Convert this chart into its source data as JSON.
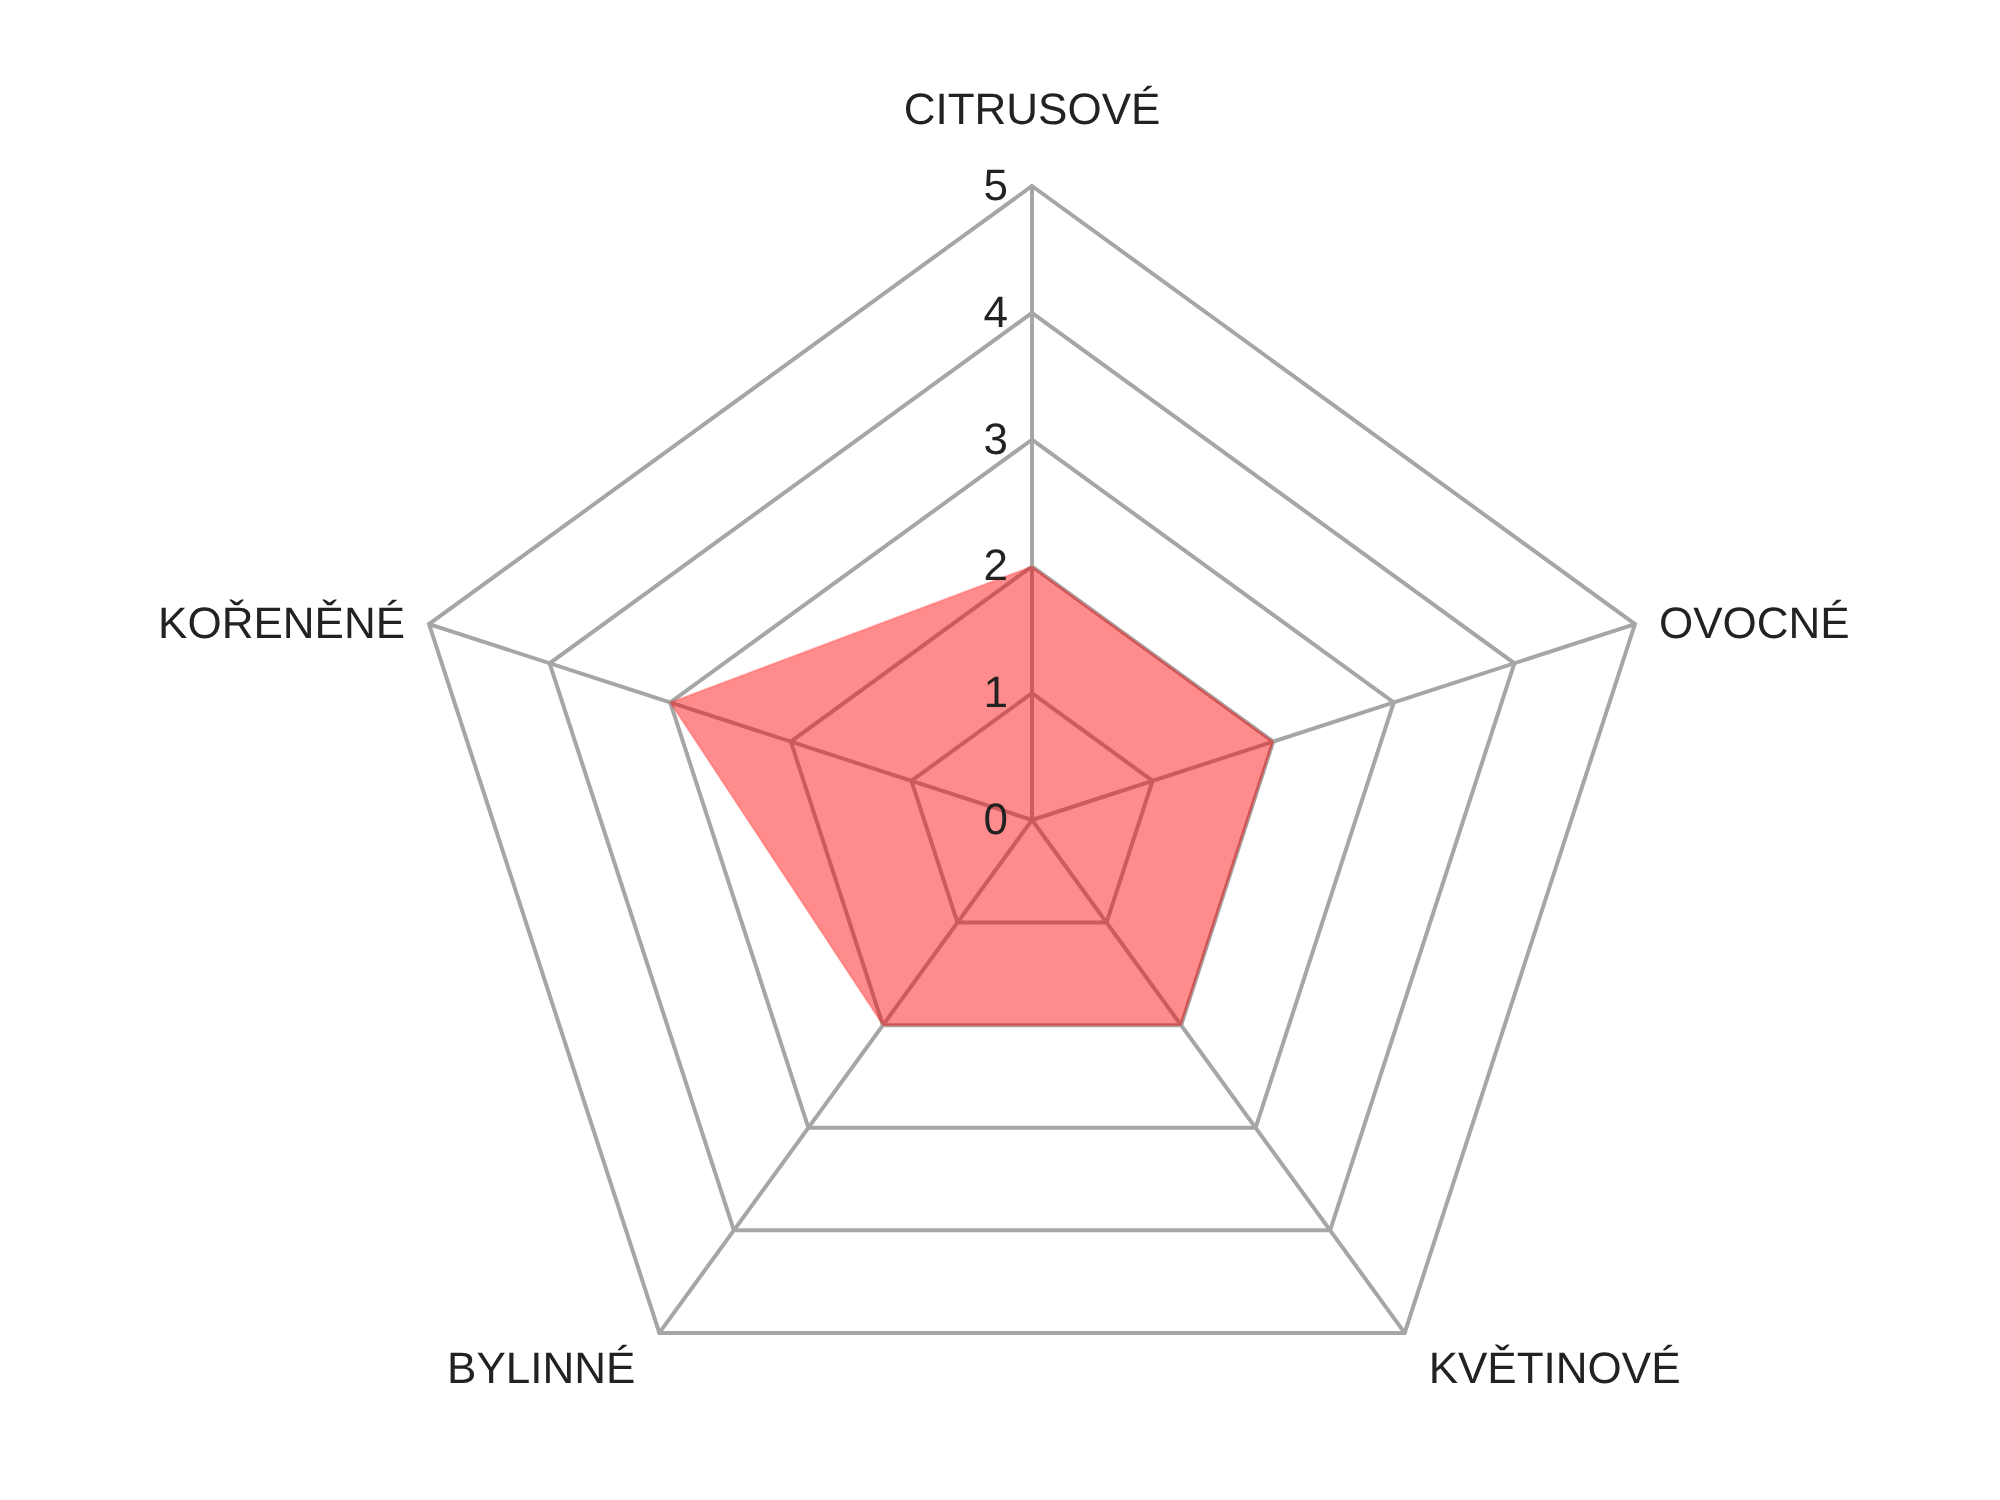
{
  "chart_data": {
    "type": "radar",
    "categories": [
      "CITRUSOVÉ",
      "OVOCNÉ",
      "KVĚTINOVÉ",
      "BYLINNÉ",
      "KOŘENĚNÉ"
    ],
    "series": [
      {
        "color": "#ff0000",
        "values": [
          2,
          2,
          2,
          2,
          3
        ]
      }
    ],
    "ylim": [
      0,
      5
    ],
    "yticks": [
      0,
      1,
      2,
      3,
      4,
      5
    ],
    "grid": true
  }
}
